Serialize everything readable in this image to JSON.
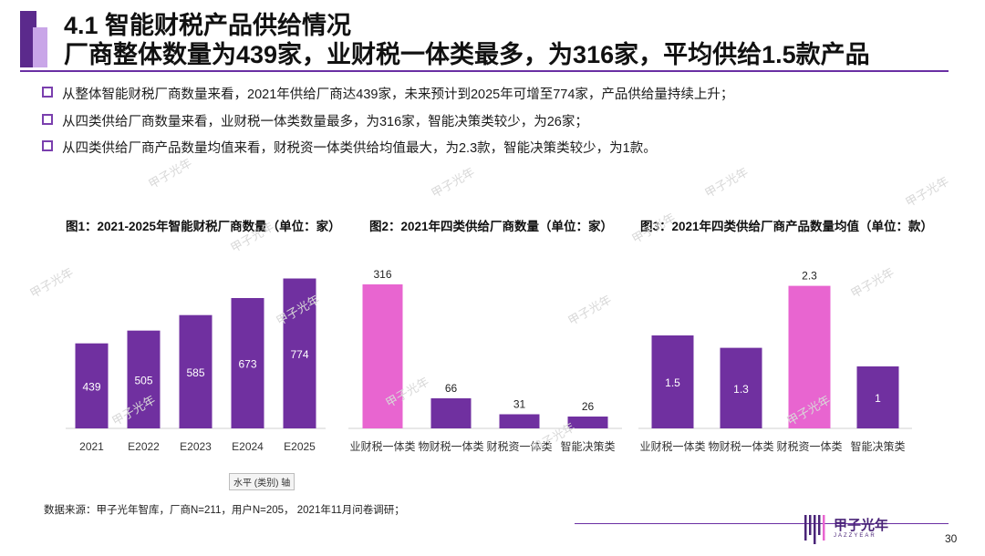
{
  "header": {
    "title_line1": "4.1 智能财税产品供给情况",
    "title_line2": "厂商整体数量为439家，业财税一体类最多，为316家，平均供给1.5款产品"
  },
  "bullets": [
    "从整体智能财税厂商数量来看，2021年供给厂商达439家，未来预计到2025年可增至774家，产品供给量持续上升；",
    "从四类供给厂商数量来看，业财税一体类数量最多，为316家，智能决策类较少，为26家；",
    "从四类供给厂商产品数量均值来看，财税资一体类供给均值最大，为2.3款，智能决策类较少，为1款。"
  ],
  "chart_data": [
    {
      "type": "bar",
      "title": "图1：2021-2025年智能财税厂商数量（单位：家）",
      "categories": [
        "2021",
        "E2022",
        "E2023",
        "E2024",
        "E2025"
      ],
      "values": [
        439,
        505,
        585,
        673,
        774
      ],
      "labels": [
        "439",
        "505",
        "585",
        "673",
        "774"
      ],
      "colors": [
        "#7030a0",
        "#7030a0",
        "#7030a0",
        "#7030a0",
        "#7030a0"
      ],
      "label_position": "inside",
      "ylim": [
        0,
        800
      ]
    },
    {
      "type": "bar",
      "title": "图2：2021年四类供给厂商数量（单位：家）",
      "categories": [
        "业财税一体类",
        "物财税一体类",
        "财税资一体类",
        "智能决策类"
      ],
      "values": [
        316,
        66,
        31,
        26
      ],
      "labels": [
        "316",
        "66",
        "31",
        "26"
      ],
      "colors": [
        "#e865d0",
        "#7030a0",
        "#7030a0",
        "#7030a0"
      ],
      "label_position": "mixed",
      "ylim": [
        0,
        340
      ]
    },
    {
      "type": "bar",
      "title": "图3：2021年四类供给厂商产品数量均值（单位：款）",
      "categories": [
        "业财税一体类",
        "物财税一体类",
        "财税资一体类",
        "智能决策类"
      ],
      "values": [
        1.5,
        1.3,
        2.3,
        1
      ],
      "labels": [
        "1.5",
        "1.3",
        "2.3",
        "1"
      ],
      "colors": [
        "#7030a0",
        "#7030a0",
        "#e865d0",
        "#7030a0"
      ],
      "label_position": "mixed",
      "ylim": [
        0,
        2.5
      ]
    }
  ],
  "axis_tag": "水平 (类别) 轴",
  "source": "数据来源：甲子光年智库，厂商N=211，用户N=205， 2021年11月问卷调研；",
  "logo": {
    "text": "甲子光年",
    "sub": "JAZZYEAR"
  },
  "page_number": "30",
  "watermark": "甲子光年"
}
